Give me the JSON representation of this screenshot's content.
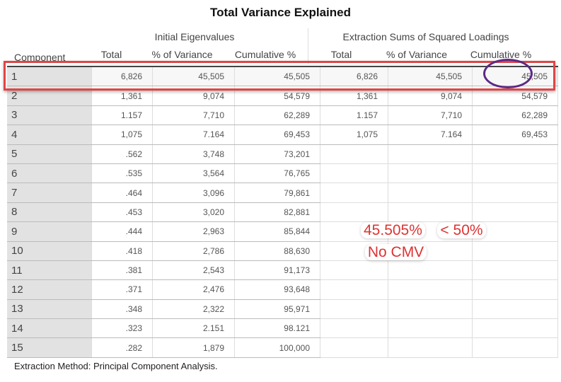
{
  "title": "Total Variance Explained",
  "groups": {
    "initial": "Initial Eigenvalues",
    "extraction": "Extraction Sums of Squared Loadings"
  },
  "columns": [
    "Component",
    "Total",
    "% of Variance",
    "Cumulative %",
    "Total",
    "% of Variance",
    "Cumulative %"
  ],
  "rows": [
    [
      "1",
      "6,826",
      "45,505",
      "45,505",
      "6,826",
      "45,505",
      "45,505"
    ],
    [
      "2",
      "1,361",
      "9,074",
      "54,579",
      "1,361",
      "9,074",
      "54,579"
    ],
    [
      "3",
      "1.157",
      "7,710",
      "62,289",
      "1.157",
      "7,710",
      "62,289"
    ],
    [
      "4",
      "1,075",
      "7.164",
      "69,453",
      "1,075",
      "7.164",
      "69,453"
    ],
    [
      "5",
      ".562",
      "3,748",
      "73,201",
      "",
      "",
      ""
    ],
    [
      "6",
      ".535",
      "3,564",
      "76,765",
      "",
      "",
      ""
    ],
    [
      "7",
      ".464",
      "3,096",
      "79,861",
      "",
      "",
      ""
    ],
    [
      "8",
      ".453",
      "3,020",
      "82,881",
      "",
      "",
      ""
    ],
    [
      "9",
      ".444",
      "2,963",
      "85,844",
      "",
      "",
      ""
    ],
    [
      "10",
      ".418",
      "2,786",
      "88,630",
      "",
      "",
      ""
    ],
    [
      "11",
      ".381",
      "2,543",
      "91,173",
      "",
      "",
      ""
    ],
    [
      "12",
      ".371",
      "2,476",
      "93,648",
      "",
      "",
      ""
    ],
    [
      "13",
      ".348",
      "2,322",
      "95,971",
      "",
      "",
      ""
    ],
    [
      "14",
      ".323",
      "2.151",
      "98.121",
      "",
      "",
      ""
    ],
    [
      "15",
      ".282",
      "1,879",
      "100,000",
      "",
      "",
      ""
    ]
  ],
  "footer": "Extraction Method: Principal Component Analysis.",
  "annotation": {
    "line1a": "45.505%",
    "line1b": "< 50%",
    "line2": "No CMV",
    "color": "#d33333",
    "highlight_color": "#e04545",
    "circle_color": "#5b2a86"
  }
}
